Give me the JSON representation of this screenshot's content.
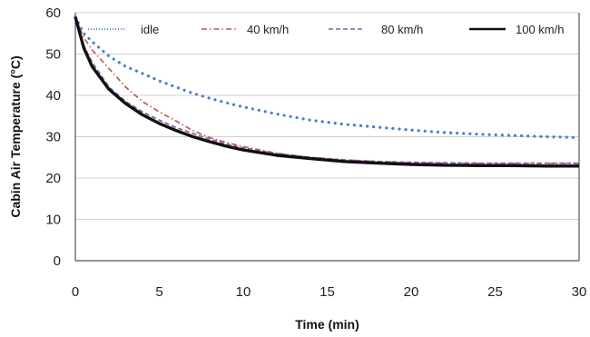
{
  "chart_data": {
    "type": "line",
    "xlabel": "Time (min)",
    "ylabel": "Cabin Air Temperature (°C)",
    "xlim": [
      0,
      30
    ],
    "ylim": [
      0,
      60
    ],
    "x_ticks": [
      0,
      5,
      10,
      15,
      20,
      25,
      30
    ],
    "y_ticks": [
      0,
      10,
      20,
      30,
      40,
      50,
      60
    ],
    "grid": "horizontal",
    "legend_position": "top",
    "series": [
      {
        "name": "idle",
        "color": "#4a7fd0",
        "style": "dotted",
        "x": [
          0,
          0.5,
          1,
          2,
          3,
          4,
          5,
          6,
          7,
          8,
          9,
          10,
          12,
          14,
          16,
          18,
          20,
          22,
          24,
          26,
          28,
          30
        ],
        "y": [
          59,
          55,
          53,
          49.5,
          47,
          45.3,
          43.5,
          42,
          40.5,
          39.3,
          38.2,
          37.2,
          35.5,
          34,
          33,
          32.3,
          31.6,
          31,
          30.6,
          30.3,
          30,
          29.8
        ]
      },
      {
        "name": "40 km/h",
        "color": "#c0504d",
        "style": "dashdot",
        "x": [
          0,
          0.5,
          1,
          2,
          3,
          4,
          5,
          6,
          7,
          8,
          9,
          10,
          12,
          14,
          16,
          18,
          20,
          22,
          24,
          26,
          28,
          30
        ],
        "y": [
          59,
          54,
          51,
          46.5,
          42,
          38.5,
          36,
          33.8,
          31.5,
          29.8,
          28.6,
          27.6,
          26,
          25,
          24.4,
          24,
          23.7,
          23.6,
          23.5,
          23.5,
          23.5,
          23.5
        ]
      },
      {
        "name": "80 km/h",
        "color": "#8064a2",
        "style": "dashed",
        "x": [
          0,
          0.5,
          1,
          2,
          3,
          4,
          5,
          6,
          7,
          8,
          9,
          10,
          12,
          14,
          16,
          18,
          20,
          22,
          24,
          26,
          28,
          30
        ],
        "y": [
          59,
          52,
          48,
          42,
          38.5,
          36,
          34,
          32.2,
          30.8,
          29.4,
          28.2,
          27.3,
          25.9,
          25,
          24.4,
          24,
          23.8,
          23.7,
          23.6,
          23.6,
          23.6,
          23.6
        ]
      },
      {
        "name": "100 km/h",
        "color": "#111111",
        "style": "solid",
        "x": [
          0,
          0.5,
          1,
          2,
          3,
          4,
          5,
          6,
          7,
          8,
          9,
          10,
          12,
          14,
          16,
          18,
          20,
          22,
          24,
          26,
          28,
          30
        ],
        "y": [
          59,
          51.5,
          47,
          41.5,
          38,
          35.3,
          33.2,
          31.5,
          30,
          28.8,
          27.7,
          26.8,
          25.5,
          24.7,
          24,
          23.6,
          23.3,
          23.1,
          23,
          23,
          22.9,
          22.9
        ]
      }
    ]
  }
}
